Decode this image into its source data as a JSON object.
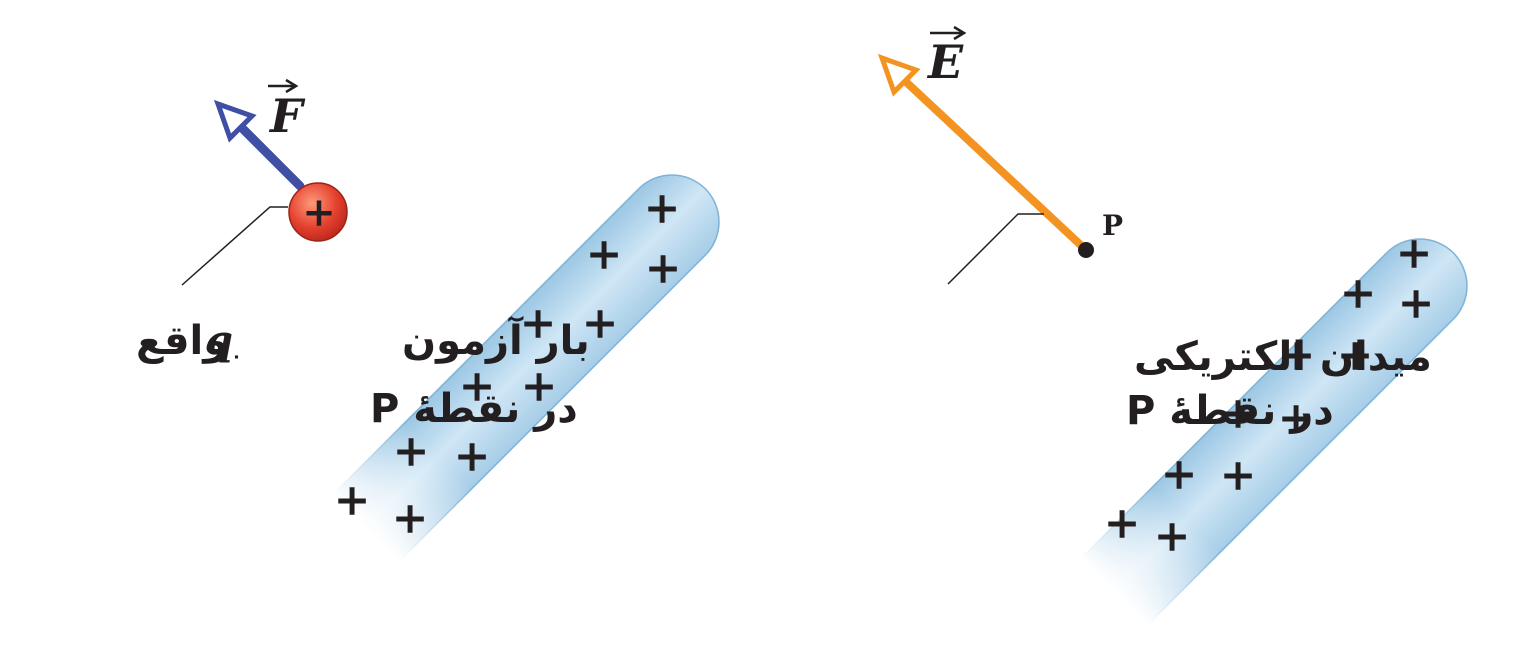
{
  "left_panel": {
    "force_label": "F",
    "charge_sign": "+",
    "label_line1_prefix": "بار آزمون",
    "label_line1_var": "q",
    "label_line1_sub": "۰",
    "label_line1_suffix": "واقع",
    "label_line2": "در نقطهٔ P",
    "arrow_color": "#3f4fa3",
    "charge_color": "#e4412f"
  },
  "right_panel": {
    "field_label": "E",
    "point_label": "P",
    "label_line1": "میدان الکتریکی",
    "label_line2": "در نقطهٔ P",
    "arrow_color": "#f39322"
  },
  "rods": {
    "fill_color": "#b9d9ee",
    "charge_sign": "+"
  }
}
